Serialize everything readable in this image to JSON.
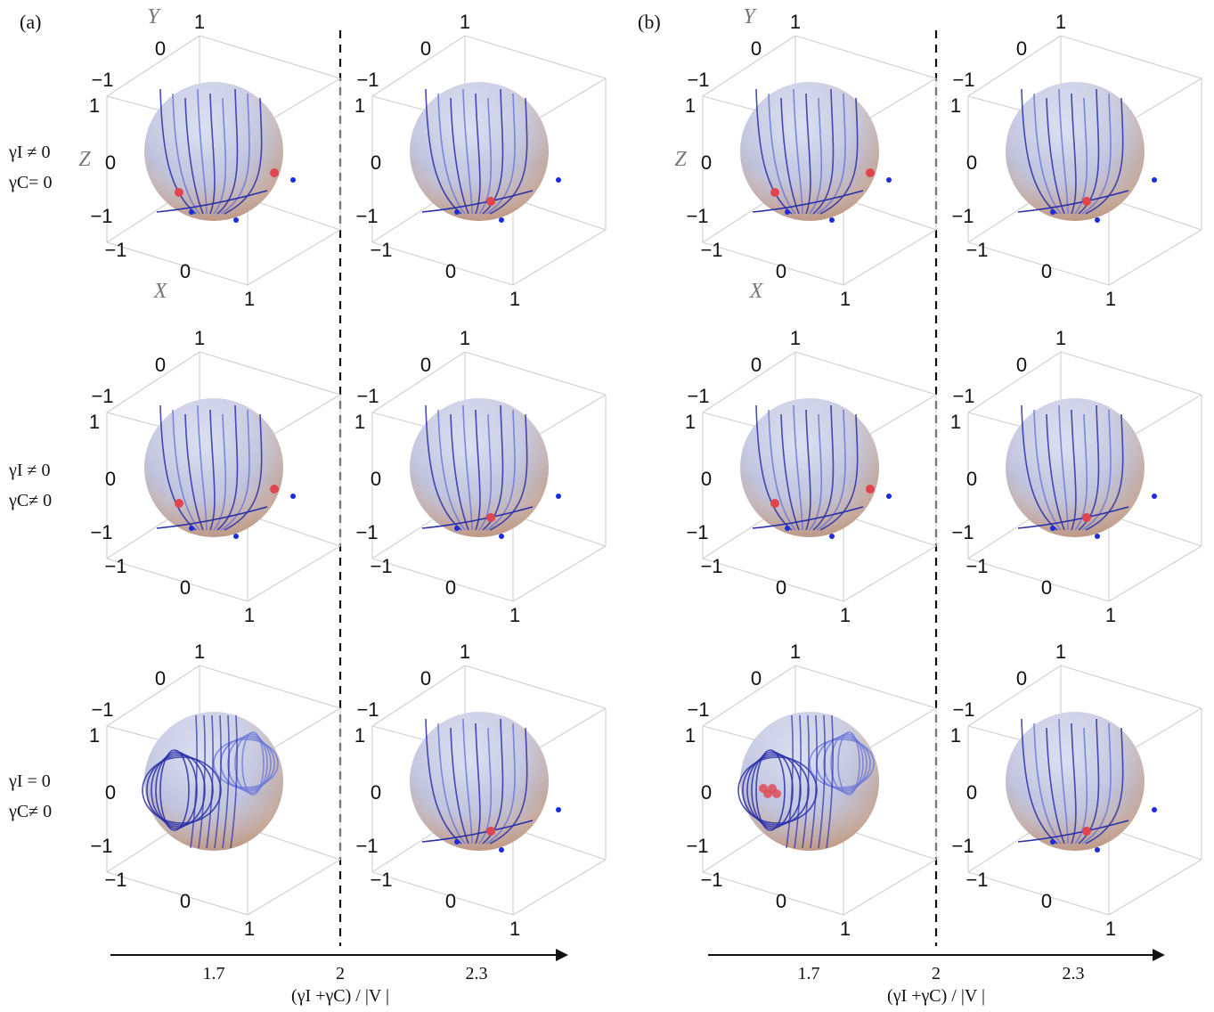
{
  "figure": {
    "panel_labels": [
      "(a)",
      "(b)"
    ],
    "axis_names": {
      "x": "X",
      "y": "Y",
      "z": "Z"
    },
    "tick_labels": {
      "neg": "−1",
      "zero": "0",
      "pos": "1"
    },
    "row_labels": [
      {
        "line1": "γI ≠ 0",
        "line2": "γC= 0"
      },
      {
        "line1": "γI ≠ 0",
        "line2": "γC≠ 0"
      },
      {
        "line1": "γI = 0",
        "line2": "γC≠ 0"
      }
    ],
    "x_axis": {
      "label": "(γI +γC) / |V |",
      "ticks": [
        "1.7",
        "2",
        "2.3"
      ]
    }
  },
  "colors": {
    "sphere_top": "#b9c0dc",
    "sphere_bottom": "#c8a98f",
    "trajectory": "#2a2fa8",
    "trajectory_light": "#6b78d8",
    "fixed_point": "#e0454f",
    "sink_point": "#1a2be0",
    "box_edge": "#cfcfcf"
  }
}
